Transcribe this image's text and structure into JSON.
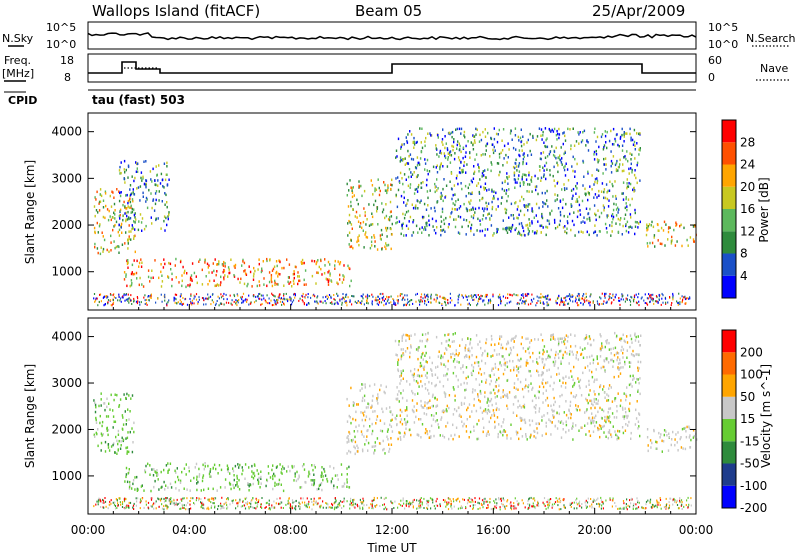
{
  "header": {
    "station": "Wallops Island (fitACF)",
    "beam": "Beam 05",
    "date": "25/Apr/2009"
  },
  "strips": {
    "nsky_label": "N.Sky",
    "nsky_ticks": [
      "10^5",
      "10^0"
    ],
    "nsearch_label": "N.Search",
    "nsearch_ticks": [
      "10^5",
      "10^0"
    ],
    "freq_label": "Freq.",
    "freq_unit": "[MHz]",
    "freq_ticks": [
      "18",
      "8"
    ],
    "nave_label": "Nave",
    "nave_ticks": [
      "60",
      "0"
    ],
    "cpid_label": "CPID",
    "cpid_value": "tau (fast) 503"
  },
  "chart_data": [
    {
      "type": "heatmap",
      "name": "power-panel",
      "ylabel": "Slant Range [km]",
      "xlabel": "",
      "ylim": [
        180,
        4400
      ],
      "xlim_hours": [
        0,
        24
      ],
      "yticks": [
        1000,
        2000,
        3000,
        4000
      ],
      "colorbar_label": "Power [dB]",
      "colorbar_ticks": [
        "28",
        "24",
        "20",
        "16",
        "12",
        "8",
        "4"
      ],
      "colorbar_colors": [
        "#0000ff",
        "#1a50c8",
        "#2e8b3c",
        "#5cb85c",
        "#c8c820",
        "#ffa500",
        "#ff5000",
        "#ff0000"
      ],
      "regions": [
        {
          "t0": 0.2,
          "t1": 1.9,
          "r0": 1400,
          "r1": 2800,
          "level": "mid"
        },
        {
          "t0": 1.4,
          "t1": 10.4,
          "r0": 700,
          "r1": 1300,
          "level": "high"
        },
        {
          "t0": 1.2,
          "t1": 3.2,
          "r0": 1900,
          "r1": 3400,
          "level": "low"
        },
        {
          "t0": 10.2,
          "t1": 12.0,
          "r0": 1500,
          "r1": 3000,
          "level": "mid"
        },
        {
          "t0": 12.1,
          "t1": 21.8,
          "r0": 1800,
          "r1": 4100,
          "level": "low"
        },
        {
          "t0": 22.0,
          "t1": 24.0,
          "r0": 1550,
          "r1": 2100,
          "level": "mid"
        }
      ]
    },
    {
      "type": "heatmap",
      "name": "velocity-panel",
      "ylabel": "Slant Range [km]",
      "xlabel": "Time UT",
      "ylim": [
        180,
        4400
      ],
      "xlim_hours": [
        0,
        24
      ],
      "yticks": [
        1000,
        2000,
        3000,
        4000
      ],
      "xticks": [
        "00:00",
        "04:00",
        "08:00",
        "12:00",
        "16:00",
        "20:00",
        "00:00"
      ],
      "colorbar_label": "Velocity [m s^-1]",
      "colorbar_ticks": [
        "200",
        "100",
        "50",
        "15",
        "-15",
        "-50",
        "-100",
        "-200"
      ],
      "colorbar_colors": [
        "#0000ff",
        "#1e3c8c",
        "#2e8b3c",
        "#66cc33",
        "#c8c8c8",
        "#ffa500",
        "#ff6a00",
        "#ff0000"
      ],
      "regions": [
        {
          "t0": 0.2,
          "t1": 1.8,
          "r0": 1500,
          "r1": 2800,
          "level": "green"
        },
        {
          "t0": 1.4,
          "t1": 10.4,
          "r0": 700,
          "r1": 1300,
          "level": "green"
        },
        {
          "t0": 10.2,
          "t1": 12.0,
          "r0": 1500,
          "r1": 3000,
          "level": "grey"
        },
        {
          "t0": 12.1,
          "t1": 21.8,
          "r0": 1800,
          "r1": 4100,
          "level": "grey"
        },
        {
          "t0": 22.0,
          "t1": 24.0,
          "r0": 1550,
          "r1": 2100,
          "level": "grey"
        }
      ]
    }
  ]
}
